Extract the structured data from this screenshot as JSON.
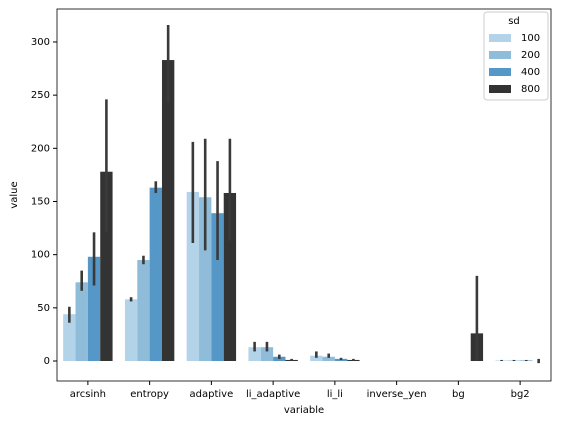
{
  "chart_data": {
    "type": "bar",
    "x_label": "variable",
    "y_label": "value",
    "categories": [
      "arcsinh",
      "entropy",
      "adaptive",
      "li_adaptive",
      "li_li",
      "inverse_yen",
      "bg",
      "bg2"
    ],
    "legend_title": "sd",
    "legend_position": "upper right",
    "ylim": [
      -18.8,
      331
    ],
    "yticks": [
      0,
      50,
      100,
      150,
      200,
      250,
      300
    ],
    "series": [
      {
        "name": "100",
        "color": "#b3d3e8",
        "values": [
          44,
          58,
          159,
          13,
          5,
          0,
          0,
          0.5
        ],
        "ci": [
          [
            36,
            51
          ],
          [
            56,
            60
          ],
          [
            111,
            206
          ],
          [
            9,
            18
          ],
          [
            3,
            9
          ],
          [
            0,
            0
          ],
          [
            0,
            0
          ],
          [
            0,
            1
          ]
        ]
      },
      {
        "name": "200",
        "color": "#8fbcd9",
        "values": [
          74,
          95,
          154,
          13,
          4,
          0,
          0,
          0.5
        ],
        "ci": [
          [
            66,
            85
          ],
          [
            91,
            99
          ],
          [
            104,
            209
          ],
          [
            9,
            18
          ],
          [
            3,
            7
          ],
          [
            0,
            0
          ],
          [
            0,
            0
          ],
          [
            0,
            1
          ]
        ]
      },
      {
        "name": "400",
        "color": "#5597c6",
        "values": [
          98,
          163,
          139,
          4,
          2,
          0,
          0,
          0.5
        ],
        "ci": [
          [
            71,
            121
          ],
          [
            158,
            169
          ],
          [
            95,
            188
          ],
          [
            2,
            6
          ],
          [
            1,
            3
          ],
          [
            0,
            0
          ],
          [
            0,
            0
          ],
          [
            0,
            1
          ]
        ]
      },
      {
        "name": "800",
        "color": "#333333",
        "values": [
          178,
          283,
          158,
          1,
          1,
          0,
          26,
          0
        ],
        "ci": [
          [
            121,
            246
          ],
          [
            243,
            316
          ],
          [
            113,
            209
          ],
          [
            0,
            2
          ],
          [
            0,
            2
          ],
          [
            0,
            0
          ],
          [
            0,
            80
          ],
          [
            -2,
            2
          ]
        ]
      }
    ]
  }
}
